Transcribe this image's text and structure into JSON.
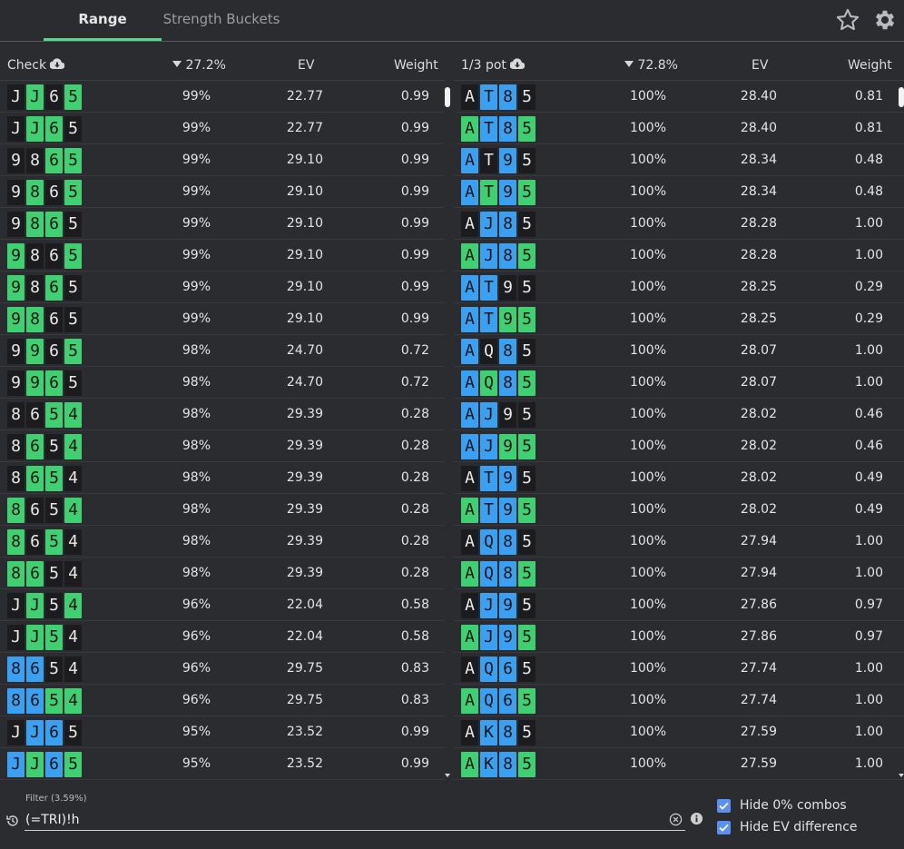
{
  "tabs": [
    {
      "label": "Range"
    },
    {
      "label": "Strength Buckets"
    }
  ],
  "left": {
    "action": "Check",
    "freq": "27.2%",
    "ev_header": "EV",
    "weight_header": "Weight",
    "rows": [
      {
        "cards": [
          [
            "J",
            "b"
          ],
          [
            "J",
            "g"
          ],
          [
            "6",
            "b"
          ],
          [
            "5",
            "g"
          ]
        ],
        "freq": "99%",
        "ev": "22.77",
        "weight": "0.99"
      },
      {
        "cards": [
          [
            "J",
            "b"
          ],
          [
            "J",
            "g"
          ],
          [
            "6",
            "g"
          ],
          [
            "5",
            "b"
          ]
        ],
        "freq": "99%",
        "ev": "22.77",
        "weight": "0.99"
      },
      {
        "cards": [
          [
            "9",
            "b"
          ],
          [
            "8",
            "b"
          ],
          [
            "6",
            "g"
          ],
          [
            "5",
            "g"
          ]
        ],
        "freq": "99%",
        "ev": "29.10",
        "weight": "0.99"
      },
      {
        "cards": [
          [
            "9",
            "b"
          ],
          [
            "8",
            "g"
          ],
          [
            "6",
            "b"
          ],
          [
            "5",
            "g"
          ]
        ],
        "freq": "99%",
        "ev": "29.10",
        "weight": "0.99"
      },
      {
        "cards": [
          [
            "9",
            "b"
          ],
          [
            "8",
            "g"
          ],
          [
            "6",
            "g"
          ],
          [
            "5",
            "b"
          ]
        ],
        "freq": "99%",
        "ev": "29.10",
        "weight": "0.99"
      },
      {
        "cards": [
          [
            "9",
            "g"
          ],
          [
            "8",
            "b"
          ],
          [
            "6",
            "b"
          ],
          [
            "5",
            "g"
          ]
        ],
        "freq": "99%",
        "ev": "29.10",
        "weight": "0.99"
      },
      {
        "cards": [
          [
            "9",
            "g"
          ],
          [
            "8",
            "b"
          ],
          [
            "6",
            "g"
          ],
          [
            "5",
            "b"
          ]
        ],
        "freq": "99%",
        "ev": "29.10",
        "weight": "0.99"
      },
      {
        "cards": [
          [
            "9",
            "g"
          ],
          [
            "8",
            "g"
          ],
          [
            "6",
            "b"
          ],
          [
            "5",
            "b"
          ]
        ],
        "freq": "99%",
        "ev": "29.10",
        "weight": "0.99"
      },
      {
        "cards": [
          [
            "9",
            "b"
          ],
          [
            "9",
            "g"
          ],
          [
            "6",
            "b"
          ],
          [
            "5",
            "g"
          ]
        ],
        "freq": "98%",
        "ev": "24.70",
        "weight": "0.72"
      },
      {
        "cards": [
          [
            "9",
            "b"
          ],
          [
            "9",
            "g"
          ],
          [
            "6",
            "g"
          ],
          [
            "5",
            "b"
          ]
        ],
        "freq": "98%",
        "ev": "24.70",
        "weight": "0.72"
      },
      {
        "cards": [
          [
            "8",
            "b"
          ],
          [
            "6",
            "b"
          ],
          [
            "5",
            "g"
          ],
          [
            "4",
            "g"
          ]
        ],
        "freq": "98%",
        "ev": "29.39",
        "weight": "0.28"
      },
      {
        "cards": [
          [
            "8",
            "b"
          ],
          [
            "6",
            "g"
          ],
          [
            "5",
            "b"
          ],
          [
            "4",
            "g"
          ]
        ],
        "freq": "98%",
        "ev": "29.39",
        "weight": "0.28"
      },
      {
        "cards": [
          [
            "8",
            "b"
          ],
          [
            "6",
            "g"
          ],
          [
            "5",
            "g"
          ],
          [
            "4",
            "b"
          ]
        ],
        "freq": "98%",
        "ev": "29.39",
        "weight": "0.28"
      },
      {
        "cards": [
          [
            "8",
            "g"
          ],
          [
            "6",
            "b"
          ],
          [
            "5",
            "b"
          ],
          [
            "4",
            "g"
          ]
        ],
        "freq": "98%",
        "ev": "29.39",
        "weight": "0.28"
      },
      {
        "cards": [
          [
            "8",
            "g"
          ],
          [
            "6",
            "b"
          ],
          [
            "5",
            "g"
          ],
          [
            "4",
            "b"
          ]
        ],
        "freq": "98%",
        "ev": "29.39",
        "weight": "0.28"
      },
      {
        "cards": [
          [
            "8",
            "g"
          ],
          [
            "6",
            "g"
          ],
          [
            "5",
            "b"
          ],
          [
            "4",
            "b"
          ]
        ],
        "freq": "98%",
        "ev": "29.39",
        "weight": "0.28"
      },
      {
        "cards": [
          [
            "J",
            "b"
          ],
          [
            "J",
            "g"
          ],
          [
            "5",
            "b"
          ],
          [
            "4",
            "g"
          ]
        ],
        "freq": "96%",
        "ev": "22.04",
        "weight": "0.58"
      },
      {
        "cards": [
          [
            "J",
            "b"
          ],
          [
            "J",
            "g"
          ],
          [
            "5",
            "g"
          ],
          [
            "4",
            "b"
          ]
        ],
        "freq": "96%",
        "ev": "22.04",
        "weight": "0.58"
      },
      {
        "cards": [
          [
            "8",
            "u"
          ],
          [
            "6",
            "u"
          ],
          [
            "5",
            "b"
          ],
          [
            "4",
            "b"
          ]
        ],
        "freq": "96%",
        "ev": "29.75",
        "weight": "0.83"
      },
      {
        "cards": [
          [
            "8",
            "u"
          ],
          [
            "6",
            "u"
          ],
          [
            "5",
            "g"
          ],
          [
            "4",
            "g"
          ]
        ],
        "freq": "96%",
        "ev": "29.75",
        "weight": "0.83"
      },
      {
        "cards": [
          [
            "J",
            "b"
          ],
          [
            "J",
            "u"
          ],
          [
            "6",
            "u"
          ],
          [
            "5",
            "b"
          ]
        ],
        "freq": "95%",
        "ev": "23.52",
        "weight": "0.99"
      },
      {
        "cards": [
          [
            "J",
            "u"
          ],
          [
            "J",
            "g"
          ],
          [
            "6",
            "u"
          ],
          [
            "5",
            "g"
          ]
        ],
        "freq": "95%",
        "ev": "23.52",
        "weight": "0.99"
      }
    ]
  },
  "right": {
    "action": "1/3 pot",
    "freq": "72.8%",
    "ev_header": "EV",
    "weight_header": "Weight",
    "rows": [
      {
        "cards": [
          [
            "A",
            "b"
          ],
          [
            "T",
            "u"
          ],
          [
            "8",
            "u"
          ],
          [
            "5",
            "b"
          ]
        ],
        "freq": "100%",
        "ev": "28.40",
        "weight": "0.81"
      },
      {
        "cards": [
          [
            "A",
            "g"
          ],
          [
            "T",
            "u"
          ],
          [
            "8",
            "u"
          ],
          [
            "5",
            "g"
          ]
        ],
        "freq": "100%",
        "ev": "28.40",
        "weight": "0.81"
      },
      {
        "cards": [
          [
            "A",
            "u"
          ],
          [
            "T",
            "b"
          ],
          [
            "9",
            "u"
          ],
          [
            "5",
            "b"
          ]
        ],
        "freq": "100%",
        "ev": "28.34",
        "weight": "0.48"
      },
      {
        "cards": [
          [
            "A",
            "u"
          ],
          [
            "T",
            "g"
          ],
          [
            "9",
            "u"
          ],
          [
            "5",
            "g"
          ]
        ],
        "freq": "100%",
        "ev": "28.34",
        "weight": "0.48"
      },
      {
        "cards": [
          [
            "A",
            "b"
          ],
          [
            "J",
            "u"
          ],
          [
            "8",
            "u"
          ],
          [
            "5",
            "b"
          ]
        ],
        "freq": "100%",
        "ev": "28.28",
        "weight": "1.00"
      },
      {
        "cards": [
          [
            "A",
            "g"
          ],
          [
            "J",
            "u"
          ],
          [
            "8",
            "u"
          ],
          [
            "5",
            "g"
          ]
        ],
        "freq": "100%",
        "ev": "28.28",
        "weight": "1.00"
      },
      {
        "cards": [
          [
            "A",
            "u"
          ],
          [
            "T",
            "u"
          ],
          [
            "9",
            "b"
          ],
          [
            "5",
            "b"
          ]
        ],
        "freq": "100%",
        "ev": "28.25",
        "weight": "0.29"
      },
      {
        "cards": [
          [
            "A",
            "u"
          ],
          [
            "T",
            "u"
          ],
          [
            "9",
            "g"
          ],
          [
            "5",
            "g"
          ]
        ],
        "freq": "100%",
        "ev": "28.25",
        "weight": "0.29"
      },
      {
        "cards": [
          [
            "A",
            "u"
          ],
          [
            "Q",
            "b"
          ],
          [
            "8",
            "u"
          ],
          [
            "5",
            "b"
          ]
        ],
        "freq": "100%",
        "ev": "28.07",
        "weight": "1.00"
      },
      {
        "cards": [
          [
            "A",
            "u"
          ],
          [
            "Q",
            "g"
          ],
          [
            "8",
            "u"
          ],
          [
            "5",
            "g"
          ]
        ],
        "freq": "100%",
        "ev": "28.07",
        "weight": "1.00"
      },
      {
        "cards": [
          [
            "A",
            "u"
          ],
          [
            "J",
            "u"
          ],
          [
            "9",
            "b"
          ],
          [
            "5",
            "b"
          ]
        ],
        "freq": "100%",
        "ev": "28.02",
        "weight": "0.46"
      },
      {
        "cards": [
          [
            "A",
            "u"
          ],
          [
            "J",
            "u"
          ],
          [
            "9",
            "g"
          ],
          [
            "5",
            "g"
          ]
        ],
        "freq": "100%",
        "ev": "28.02",
        "weight": "0.46"
      },
      {
        "cards": [
          [
            "A",
            "b"
          ],
          [
            "T",
            "u"
          ],
          [
            "9",
            "u"
          ],
          [
            "5",
            "b"
          ]
        ],
        "freq": "100%",
        "ev": "28.02",
        "weight": "0.49"
      },
      {
        "cards": [
          [
            "A",
            "g"
          ],
          [
            "T",
            "u"
          ],
          [
            "9",
            "u"
          ],
          [
            "5",
            "g"
          ]
        ],
        "freq": "100%",
        "ev": "28.02",
        "weight": "0.49"
      },
      {
        "cards": [
          [
            "A",
            "b"
          ],
          [
            "Q",
            "u"
          ],
          [
            "8",
            "u"
          ],
          [
            "5",
            "b"
          ]
        ],
        "freq": "100%",
        "ev": "27.94",
        "weight": "1.00"
      },
      {
        "cards": [
          [
            "A",
            "g"
          ],
          [
            "Q",
            "u"
          ],
          [
            "8",
            "u"
          ],
          [
            "5",
            "g"
          ]
        ],
        "freq": "100%",
        "ev": "27.94",
        "weight": "1.00"
      },
      {
        "cards": [
          [
            "A",
            "b"
          ],
          [
            "J",
            "u"
          ],
          [
            "9",
            "u"
          ],
          [
            "5",
            "b"
          ]
        ],
        "freq": "100%",
        "ev": "27.86",
        "weight": "0.97"
      },
      {
        "cards": [
          [
            "A",
            "g"
          ],
          [
            "J",
            "u"
          ],
          [
            "9",
            "u"
          ],
          [
            "5",
            "g"
          ]
        ],
        "freq": "100%",
        "ev": "27.86",
        "weight": "0.97"
      },
      {
        "cards": [
          [
            "A",
            "b"
          ],
          [
            "Q",
            "u"
          ],
          [
            "6",
            "u"
          ],
          [
            "5",
            "b"
          ]
        ],
        "freq": "100%",
        "ev": "27.74",
        "weight": "1.00"
      },
      {
        "cards": [
          [
            "A",
            "g"
          ],
          [
            "Q",
            "u"
          ],
          [
            "6",
            "u"
          ],
          [
            "5",
            "g"
          ]
        ],
        "freq": "100%",
        "ev": "27.74",
        "weight": "1.00"
      },
      {
        "cards": [
          [
            "A",
            "b"
          ],
          [
            "K",
            "u"
          ],
          [
            "8",
            "u"
          ],
          [
            "5",
            "b"
          ]
        ],
        "freq": "100%",
        "ev": "27.59",
        "weight": "1.00"
      },
      {
        "cards": [
          [
            "A",
            "g"
          ],
          [
            "K",
            "u"
          ],
          [
            "8",
            "u"
          ],
          [
            "5",
            "g"
          ]
        ],
        "freq": "100%",
        "ev": "27.59",
        "weight": "1.00"
      }
    ]
  },
  "filter": {
    "label": "Filter (3.59%)",
    "value": "(=TRI)!h"
  },
  "options": {
    "hide_zero": "Hide 0% combos",
    "hide_ev": "Hide EV difference"
  },
  "colors": {
    "black_card": "#1c1c1e",
    "green_card": "#3fd072",
    "blue_card": "#3aa0f2",
    "active_tab": "#58d98e",
    "checkbox": "#5b8ff0"
  },
  "icons": [
    "star-icon",
    "gear-icon",
    "download-icon",
    "sort-desc-icon",
    "history-icon",
    "clear-icon",
    "info-icon",
    "checkbox-check-icon"
  ]
}
